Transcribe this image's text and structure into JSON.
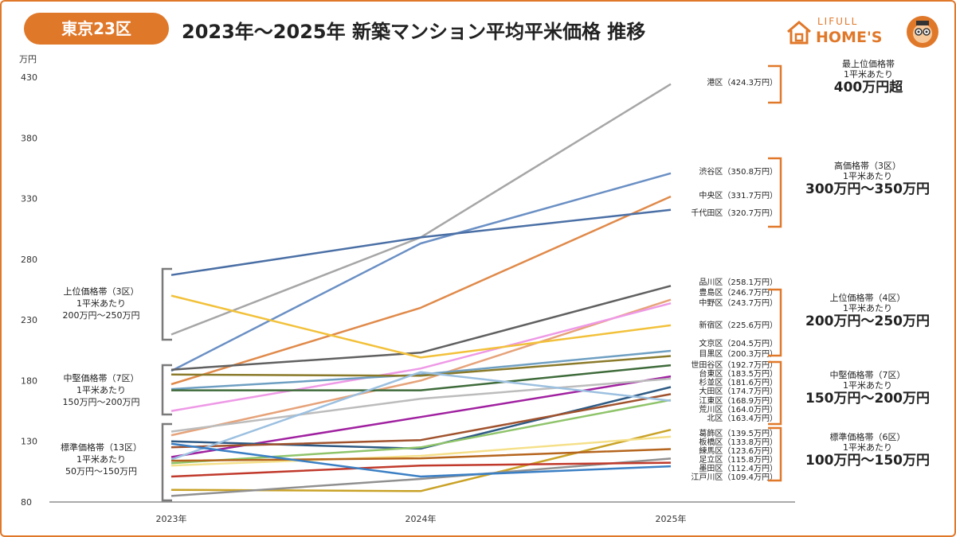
{
  "region_label": "東京23区",
  "title": "2023年～2025年 新築マンション平均平米価格 推移",
  "logo": {
    "line1": "LIFULL",
    "line2": "HOME'S",
    "icon": "house-icon",
    "mascot": "mascot-icon"
  },
  "colors": {
    "accent": "#e0782a",
    "bracket_right": "#e0782a",
    "bracket_left": "#7a7a7a"
  },
  "left_bands": [
    {
      "line1": "上位価格帯（3区）",
      "line2": "1平米あたり",
      "line3": "200万円～250万円"
    },
    {
      "line1": "中堅価格帯（7区）",
      "line2": "1平米あたり",
      "line3": "150万円～200万円"
    },
    {
      "line1": "標準価格帯（13区）",
      "line2": "1平米あたり",
      "line3": "50万円～150万円"
    }
  ],
  "right_bands": [
    {
      "line1": "最上位価格帯",
      "line2": "1平米あたり",
      "line3": "400万円超"
    },
    {
      "line1": "高価格帯（3区）",
      "line2": "1平米あたり",
      "line3": "300万円～350万円"
    },
    {
      "line1": "上位価格帯（4区）",
      "line2": "1平米あたり",
      "line3": "200万円～250万円"
    },
    {
      "line1": "中堅価格帯（7区）",
      "line2": "1平米あたり",
      "line3": "150万円～200万円"
    },
    {
      "line1": "標準価格帯（6区）",
      "line2": "1平米あたり",
      "line3": "100万円～150万円"
    }
  ],
  "chart_data": {
    "type": "line",
    "title": "2023年～2025年 新築マンション平均平米価格 推移",
    "ylabel": "万円",
    "xlabel": "",
    "x": [
      "2023年",
      "2024年",
      "2025年"
    ],
    "ylim": [
      80,
      430
    ],
    "yticks": [
      80,
      130,
      180,
      230,
      280,
      330,
      380,
      430
    ],
    "grid": false,
    "series": [
      {
        "name": "港区",
        "label": "港区（424.3万円）",
        "color": "#a6a6a6",
        "values": [
          218,
          298,
          424.3
        ]
      },
      {
        "name": "渋谷区",
        "label": "渋谷区（350.8万円）",
        "color": "#6a8fc4",
        "values": [
          188,
          293,
          350.8
        ]
      },
      {
        "name": "中央区",
        "label": "中央区（331.7万円）",
        "color": "#e08a4a",
        "values": [
          177,
          240,
          331.7
        ]
      },
      {
        "name": "千代田区",
        "label": "千代田区（320.7万円）",
        "color": "#4a6fa5",
        "values": [
          267,
          298,
          320.7
        ]
      },
      {
        "name": "品川区",
        "label": "品川区（258.1万円）",
        "color": "#606060",
        "values": [
          189,
          203,
          258.1
        ]
      },
      {
        "name": "豊島区",
        "label": "豊島区（246.7万円）",
        "color": "#e6a37a",
        "values": [
          135,
          180,
          246.7
        ]
      },
      {
        "name": "中野区",
        "label": "中野区（243.7万円）",
        "color": "#ee99e6",
        "values": [
          155,
          190,
          243.7
        ]
      },
      {
        "name": "新宿区",
        "label": "新宿区（225.6万円）",
        "color": "#f2c13a",
        "values": [
          250,
          199,
          225.6
        ]
      },
      {
        "name": "文京区",
        "label": "文京区（204.5万円）",
        "color": "#6e9fc2",
        "values": [
          173,
          185,
          204.5
        ]
      },
      {
        "name": "目黒区",
        "label": "目黒区（200.3万円）",
        "color": "#8a7a2a",
        "values": [
          185,
          184,
          200.3
        ]
      },
      {
        "name": "世田谷区",
        "label": "世田谷区（192.7万円）",
        "color": "#3e6b3a",
        "values": [
          172,
          172,
          192.7
        ]
      },
      {
        "name": "台東区",
        "label": "台東区（183.5万円）",
        "color": "#a020a0",
        "values": [
          117,
          150,
          183.5
        ]
      },
      {
        "name": "杉並区",
        "label": "杉並区（181.6万円）",
        "color": "#bcbcbc",
        "values": [
          138,
          165,
          181.6
        ]
      },
      {
        "name": "大田区",
        "label": "大田区（174.7万円）",
        "color": "#2e5a84",
        "values": [
          130,
          124,
          174.7
        ]
      },
      {
        "name": "江東区",
        "label": "江東区（168.9万円）",
        "color": "#a0522d",
        "values": [
          125,
          131,
          168.9
        ]
      },
      {
        "name": "荒川区",
        "label": "荒川区（164.0万円）",
        "color": "#8fc46a",
        "values": [
          112,
          125,
          164.0
        ]
      },
      {
        "name": "北区",
        "label": "北区（163.4万円）",
        "color": "#9cc0e0",
        "values": [
          115,
          187,
          163.4
        ]
      },
      {
        "name": "葛飾区",
        "label": "葛飾区（139.5万円）",
        "color": "#c9a227",
        "values": [
          90,
          89,
          139.5
        ]
      },
      {
        "name": "板橋区",
        "label": "板橋区（133.8万円）",
        "color": "#f5e08a",
        "values": [
          110,
          118,
          133.8
        ]
      },
      {
        "name": "練馬区",
        "label": "練馬区（123.6万円）",
        "color": "#b5651d",
        "values": [
          114,
          116,
          123.6
        ]
      },
      {
        "name": "足立区",
        "label": "足立区（115.8万円）",
        "color": "#909090",
        "values": [
          85,
          99,
          115.8
        ]
      },
      {
        "name": "墨田区",
        "label": "墨田区（112.4万円）",
        "color": "#c0392b",
        "values": [
          101,
          110,
          112.4
        ]
      },
      {
        "name": "江戸川区",
        "label": "江戸川区（109.4万円）",
        "color": "#3a7fc4",
        "values": [
          128,
          101,
          109.4
        ]
      }
    ]
  }
}
